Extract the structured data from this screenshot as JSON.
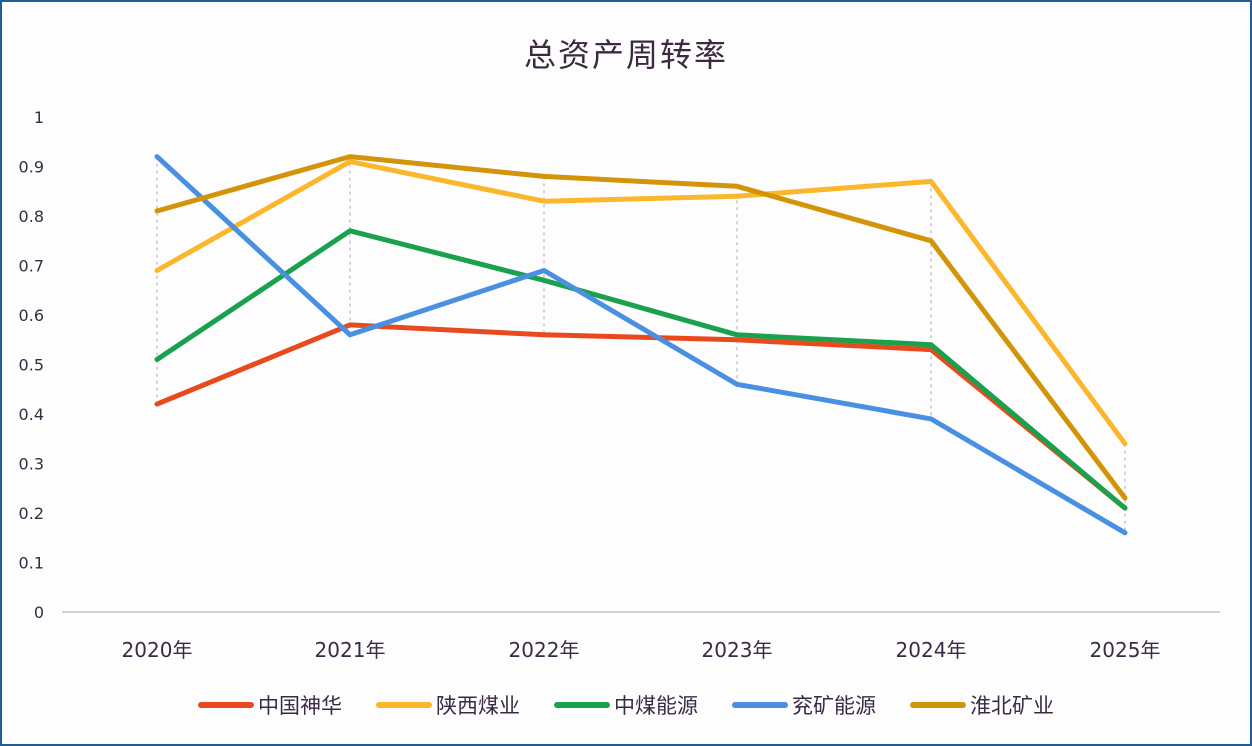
{
  "chart_data": {
    "type": "line",
    "title": "总资产周转率",
    "xlabel": "",
    "ylabel": "",
    "categories": [
      "2020年",
      "2021年",
      "2022年",
      "2023年",
      "2024年",
      "2025年"
    ],
    "ylim": [
      0,
      1
    ],
    "yticks": [
      "0",
      "0.1",
      "0.2",
      "0.3",
      "0.4",
      "0.5",
      "0.6",
      "0.7",
      "0.8",
      "0.9",
      "1"
    ],
    "grid": "vertical dashed drop lines at categories",
    "legend_position": "bottom",
    "series": [
      {
        "name": "中国神华",
        "color": "#e84a1e",
        "values": [
          0.42,
          0.58,
          0.56,
          0.55,
          0.53,
          0.21
        ]
      },
      {
        "name": "陕西煤业",
        "color": "#fbb72c",
        "values": [
          0.69,
          0.91,
          0.83,
          0.84,
          0.87,
          0.34
        ]
      },
      {
        "name": "中煤能源",
        "color": "#1aa14e",
        "values": [
          0.51,
          0.77,
          0.67,
          0.56,
          0.54,
          0.21
        ]
      },
      {
        "name": "兖矿能源",
        "color": "#4a90e2",
        "values": [
          0.92,
          0.56,
          0.69,
          0.46,
          0.39,
          0.16
        ]
      },
      {
        "name": "淮北矿业",
        "color": "#d4940a",
        "values": [
          0.81,
          0.92,
          0.88,
          0.86,
          0.75,
          0.23
        ]
      }
    ]
  }
}
